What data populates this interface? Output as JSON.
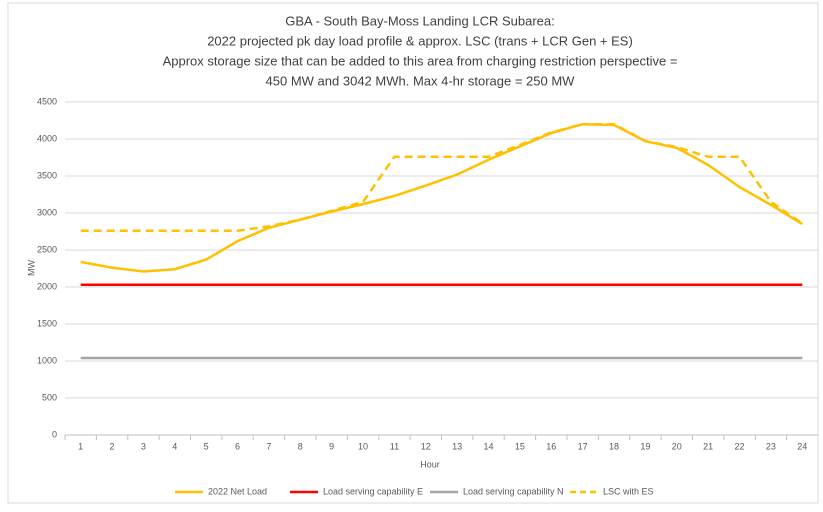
{
  "chart_data": {
    "type": "line",
    "title": [
      "GBA - South Bay-Moss Landing LCR Subarea:",
      "2022 projected pk day load profile & approx. LSC (trans + LCR Gen + ES)",
      "Approx storage size that can be added to this area from charging restriction perspective =",
      "450 MW and 3042 MWh. Max 4-hr storage = 250 MW"
    ],
    "x_label": "Hour",
    "y_label": "MW",
    "categories": [
      1,
      2,
      3,
      4,
      5,
      6,
      7,
      8,
      9,
      10,
      11,
      12,
      13,
      14,
      15,
      16,
      17,
      18,
      19,
      20,
      21,
      22,
      23,
      24
    ],
    "ylim": [
      0,
      4500
    ],
    "yticks": [
      0,
      500,
      1000,
      1500,
      2000,
      2500,
      3000,
      3500,
      4000,
      4500
    ],
    "grid": true,
    "legend": "bottom",
    "series": [
      {
        "name": "2022 Net Load",
        "color": "#ffc000",
        "dashed": false,
        "values": [
          2340,
          2260,
          2210,
          2240,
          2370,
          2620,
          2800,
          2910,
          3020,
          3120,
          3230,
          3370,
          3520,
          3720,
          3900,
          4080,
          4200,
          4190,
          3970,
          3880,
          3650,
          3350,
          3110,
          2850
        ]
      },
      {
        "name": "Load serving capability E",
        "color": "#ff0000",
        "dashed": false,
        "values": [
          2030,
          2030,
          2030,
          2030,
          2030,
          2030,
          2030,
          2030,
          2030,
          2030,
          2030,
          2030,
          2030,
          2030,
          2030,
          2030,
          2030,
          2030,
          2030,
          2030,
          2030,
          2030,
          2030,
          2030
        ]
      },
      {
        "name": "Load serving capability N",
        "color": "#a5a5a5",
        "dashed": false,
        "values": [
          1040,
          1040,
          1040,
          1040,
          1040,
          1040,
          1040,
          1040,
          1040,
          1040,
          1040,
          1040,
          1040,
          1040,
          1040,
          1040,
          1040,
          1040,
          1040,
          1040,
          1040,
          1040,
          1040,
          1040
        ]
      },
      {
        "name": "LSC with ES",
        "color": "#ffc000",
        "dashed": true,
        "values": [
          2760,
          2760,
          2760,
          2760,
          2760,
          2760,
          2820,
          2910,
          3030,
          3150,
          3760,
          3760,
          3760,
          3760,
          3920,
          4090,
          4200,
          4200,
          3970,
          3890,
          3760,
          3760,
          3150,
          2860
        ]
      }
    ]
  }
}
